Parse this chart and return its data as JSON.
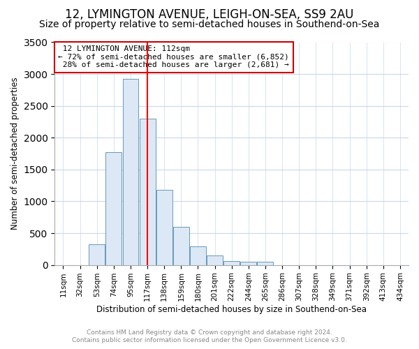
{
  "title": "12, LYMINGTON AVENUE, LEIGH-ON-SEA, SS9 2AU",
  "subtitle": "Size of property relative to semi-detached houses in Southend-on-Sea",
  "xlabel": "Distribution of semi-detached houses by size in Southend-on-Sea",
  "ylabel": "Number of semi-detached properties",
  "footnote1": "Contains HM Land Registry data © Crown copyright and database right 2024.",
  "footnote2": "Contains public sector information licensed under the Open Government Licence v3.0.",
  "property_label": "12 LYMINGTON AVENUE: 112sqm",
  "pct_smaller": 72,
  "pct_larger": 28,
  "n_smaller": 6852,
  "n_larger": 2681,
  "bar_categories": [
    "11sqm",
    "32sqm",
    "53sqm",
    "74sqm",
    "95sqm",
    "117sqm",
    "138sqm",
    "159sqm",
    "180sqm",
    "201sqm",
    "222sqm",
    "244sqm",
    "265sqm",
    "286sqm",
    "307sqm",
    "328sqm",
    "349sqm",
    "371sqm",
    "392sqm",
    "413sqm",
    "434sqm"
  ],
  "bar_values": [
    0,
    0,
    325,
    1775,
    2925,
    2300,
    1175,
    600,
    290,
    145,
    65,
    50,
    45,
    0,
    0,
    0,
    0,
    0,
    0,
    0,
    0
  ],
  "bar_color": "#dce8f5",
  "bar_edge_color": "#6699bb",
  "vline_x_index": 5,
  "ylim": [
    0,
    3500
  ],
  "yticks": [
    0,
    500,
    1000,
    1500,
    2000,
    2500,
    3000,
    3500
  ],
  "annotation_box_facecolor": "#ffffff",
  "annotation_box_edge": "#cc0000",
  "bg_color": "#ffffff",
  "title_fontsize": 12,
  "subtitle_fontsize": 10,
  "footnote_color": "#888888"
}
